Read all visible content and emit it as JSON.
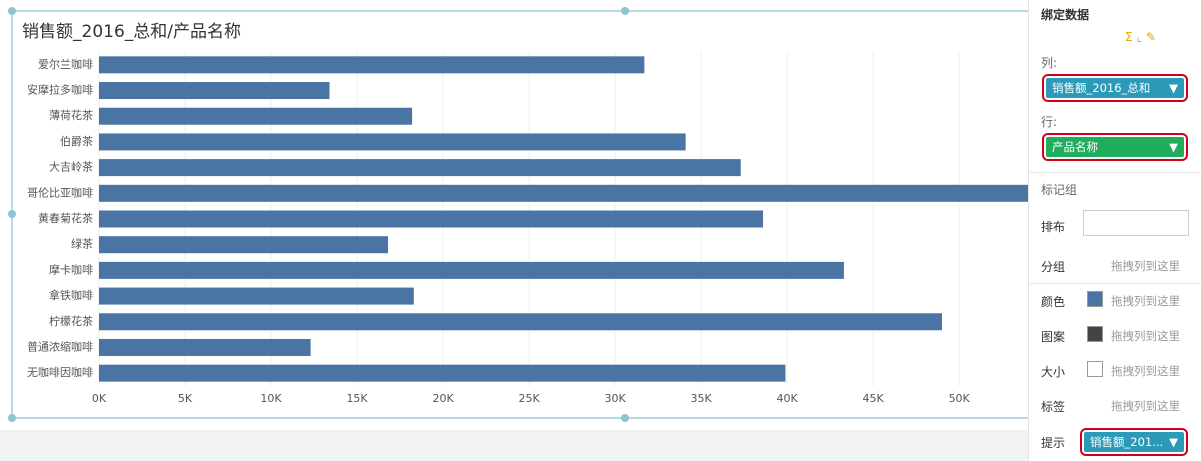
{
  "chart_data": {
    "type": "bar",
    "orientation": "horizontal",
    "title": "销售额_2016_总和/产品名称",
    "categories": [
      "爱尔兰咖啡",
      "安摩拉多咖啡",
      "薄荷花茶",
      "伯爵茶",
      "大吉岭茶",
      "哥伦比亚咖啡",
      "黄春菊花茶",
      "绿茶",
      "摩卡咖啡",
      "拿铁咖啡",
      "柠檬花茶",
      "普通浓缩咖啡",
      "无咖啡因咖啡"
    ],
    "values": [
      31700,
      13400,
      18200,
      34100,
      37300,
      56000,
      38600,
      16800,
      43300,
      18300,
      49000,
      12300,
      39900
    ],
    "color": "#4a74a3",
    "xlim": [
      0,
      54000
    ],
    "xticks": [
      {
        "value": 0,
        "label": "0K"
      },
      {
        "value": 5000,
        "label": "5K"
      },
      {
        "value": 10000,
        "label": "10K"
      },
      {
        "value": 15000,
        "label": "15K"
      },
      {
        "value": 20000,
        "label": "20K"
      },
      {
        "value": 25000,
        "label": "25K"
      },
      {
        "value": 30000,
        "label": "30K"
      },
      {
        "value": 35000,
        "label": "35K"
      },
      {
        "value": 40000,
        "label": "40K"
      },
      {
        "value": 45000,
        "label": "45K"
      },
      {
        "value": 50000,
        "label": "50K"
      }
    ],
    "grid": true
  },
  "panel": {
    "title": "绑定数据",
    "columns": {
      "label": "列:",
      "field": "销售额_2016_总和"
    },
    "rows": {
      "label": "行:",
      "field": "产品名称"
    },
    "marks": {
      "label": "标记组",
      "layout": "排布",
      "group": "分组",
      "color": "颜色",
      "pattern": "图案",
      "size": "大小",
      "labels": "标签",
      "tooltip": "提示",
      "tooltip_field": "销售额_201...",
      "drop_hint": "拖拽列到这里"
    }
  }
}
